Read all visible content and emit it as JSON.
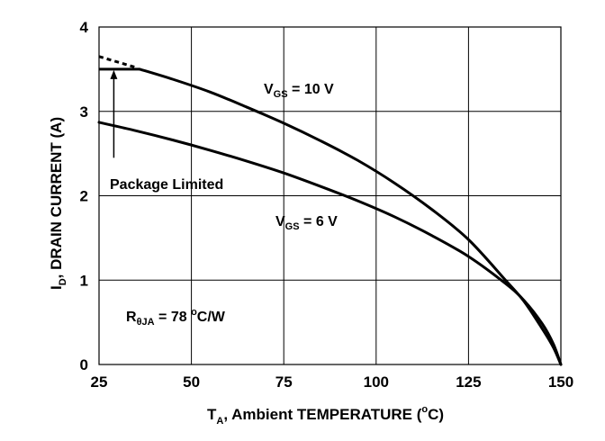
{
  "chart_data": {
    "type": "line",
    "xlabel_main": "T",
    "xlabel_sub": "A",
    "xlabel_rest": ", Ambient TEMPERATURE (",
    "xlabel_deg": "o",
    "xlabel_end": "C)",
    "ylabel_main": "I",
    "ylabel_sub": "D",
    "ylabel_rest": ", DRAIN CURRENT (A)",
    "xlim": [
      25,
      150
    ],
    "ylim": [
      0,
      4
    ],
    "x_ticks": [
      25,
      50,
      75,
      100,
      125,
      150
    ],
    "y_ticks": [
      0,
      1,
      2,
      3,
      4
    ],
    "x_tick_labels": [
      "25",
      "50",
      "75",
      "100",
      "125",
      "150"
    ],
    "y_tick_labels": [
      "0",
      "1",
      "2",
      "3",
      "4"
    ],
    "grid": true,
    "series": [
      {
        "name": "VGS = 10 V",
        "label_main": "V",
        "label_sub": "GS",
        "label_rest": " = 10 V",
        "x": [
          36,
          45,
          55,
          65,
          75,
          85,
          95,
          105,
          115,
          125,
          135,
          140,
          145,
          148,
          150
        ],
        "y": [
          3.5,
          3.38,
          3.23,
          3.05,
          2.86,
          2.65,
          2.42,
          2.15,
          1.84,
          1.48,
          1.0,
          0.75,
          0.42,
          0.2,
          0.0
        ]
      },
      {
        "name": "VGS = 6 V",
        "label_main": "V",
        "label_sub": "GS",
        "label_rest": " = 6 V",
        "x": [
          25,
          35,
          45,
          55,
          65,
          75,
          85,
          95,
          105,
          115,
          125,
          135,
          140,
          145,
          148,
          150
        ],
        "y": [
          2.87,
          2.77,
          2.66,
          2.54,
          2.41,
          2.27,
          2.11,
          1.94,
          1.75,
          1.53,
          1.28,
          0.96,
          0.76,
          0.48,
          0.24,
          0.0
        ]
      }
    ],
    "package_limit": {
      "solid": {
        "x": [
          25,
          36
        ],
        "y": [
          3.5,
          3.5
        ]
      },
      "dashed": {
        "x": [
          25,
          35
        ],
        "y": [
          3.65,
          3.52
        ]
      },
      "arrow_x": 29,
      "arrow_from_y": 2.45,
      "arrow_to_y": 3.5
    },
    "annotations": {
      "package_limited": "Package Limited",
      "rtheta_main": "R",
      "rtheta_sub": "θJA",
      "rtheta_rest": " = 78 ",
      "rtheta_deg": "o",
      "rtheta_end": "C/W"
    }
  }
}
